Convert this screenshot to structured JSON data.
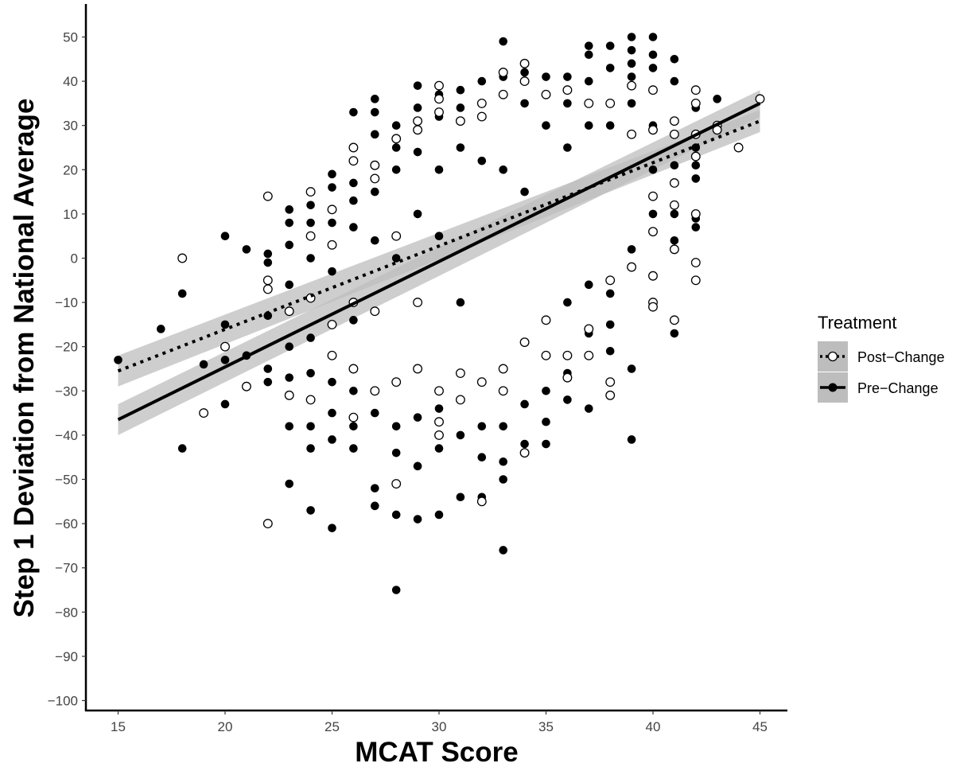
{
  "chart_data": {
    "type": "scatter",
    "title": "",
    "xlabel": "MCAT Score",
    "ylabel": "Step 1 Deviation from National Average",
    "xlim": [
      14,
      46
    ],
    "ylim": [
      -103,
      53
    ],
    "x_ticks": [
      15,
      20,
      25,
      30,
      35,
      40,
      45
    ],
    "y_ticks": [
      -100,
      -90,
      -80,
      -70,
      -60,
      -50,
      -40,
      -30,
      -20,
      -10,
      0,
      10,
      20,
      30,
      40,
      50
    ],
    "x_tick_labels": [
      "15",
      "20",
      "25",
      "30",
      "35",
      "40",
      "45"
    ],
    "y_tick_labels": [
      "−100",
      "−90",
      "−80",
      "−70",
      "−60",
      "−50",
      "−40",
      "−30",
      "−20",
      "−10",
      "0",
      "10",
      "20",
      "30",
      "40",
      "50"
    ],
    "grid": false,
    "legend": {
      "title": "Treatment",
      "position": "right",
      "entries": [
        "Post−Change",
        "Pre−Change"
      ]
    },
    "band_color": "#bdbdbd",
    "series": [
      {
        "name": "Post−Change",
        "marker": "open-circle",
        "line_style": "dotted",
        "color": "#000000",
        "fit": {
          "x": [
            15,
            45
          ],
          "y": [
            -25.5,
            31.0
          ],
          "ci_lower": [
            -29.0,
            28.5
          ],
          "ci_upper": [
            -22.0,
            33.5
          ]
        },
        "points": [
          [
            18,
            0
          ],
          [
            19,
            -35
          ],
          [
            20,
            -20
          ],
          [
            21,
            -29
          ],
          [
            22,
            14
          ],
          [
            22,
            -60
          ],
          [
            22,
            -5
          ],
          [
            22,
            -7
          ],
          [
            23,
            -12
          ],
          [
            23,
            -31
          ],
          [
            24,
            15
          ],
          [
            24,
            -32
          ],
          [
            24,
            -9
          ],
          [
            24,
            5
          ],
          [
            25,
            11
          ],
          [
            25,
            3
          ],
          [
            25,
            -15
          ],
          [
            25,
            -22
          ],
          [
            26,
            25
          ],
          [
            26,
            22
          ],
          [
            26,
            -10
          ],
          [
            26,
            -36
          ],
          [
            26,
            -25
          ],
          [
            27,
            21
          ],
          [
            27,
            18
          ],
          [
            27,
            -30
          ],
          [
            27,
            -12
          ],
          [
            28,
            27
          ],
          [
            28,
            -51
          ],
          [
            28,
            -28
          ],
          [
            28,
            5
          ],
          [
            29,
            31
          ],
          [
            29,
            29
          ],
          [
            29,
            -10
          ],
          [
            29,
            -25
          ],
          [
            30,
            39
          ],
          [
            30,
            36
          ],
          [
            30,
            33
          ],
          [
            30,
            -30
          ],
          [
            30,
            -37
          ],
          [
            30,
            -40
          ],
          [
            31,
            31
          ],
          [
            31,
            -32
          ],
          [
            31,
            -26
          ],
          [
            32,
            35
          ],
          [
            32,
            32
          ],
          [
            32,
            -55
          ],
          [
            32,
            -28
          ],
          [
            33,
            42
          ],
          [
            33,
            37
          ],
          [
            33,
            -25
          ],
          [
            33,
            -30
          ],
          [
            34,
            44
          ],
          [
            34,
            40
          ],
          [
            34,
            -44
          ],
          [
            34,
            -19
          ],
          [
            35,
            37
          ],
          [
            35,
            -14
          ],
          [
            35,
            -22
          ],
          [
            36,
            38
          ],
          [
            36,
            -22
          ],
          [
            36,
            -27
          ],
          [
            37,
            35
          ],
          [
            37,
            -22
          ],
          [
            37,
            -16
          ],
          [
            38,
            35
          ],
          [
            38,
            -28
          ],
          [
            38,
            -31
          ],
          [
            38,
            -5
          ],
          [
            39,
            39
          ],
          [
            39,
            28
          ],
          [
            39,
            -2
          ],
          [
            40,
            38
          ],
          [
            40,
            29
          ],
          [
            40,
            14
          ],
          [
            40,
            6
          ],
          [
            40,
            -4
          ],
          [
            40,
            -10
          ],
          [
            40,
            -11
          ],
          [
            41,
            31
          ],
          [
            41,
            28
          ],
          [
            41,
            17
          ],
          [
            41,
            12
          ],
          [
            41,
            2
          ],
          [
            41,
            -14
          ],
          [
            42,
            38
          ],
          [
            42,
            35
          ],
          [
            42,
            28
          ],
          [
            42,
            23
          ],
          [
            42,
            10
          ],
          [
            42,
            -1
          ],
          [
            42,
            -5
          ],
          [
            43,
            30
          ],
          [
            43,
            29
          ],
          [
            44,
            25
          ],
          [
            45,
            36
          ]
        ]
      },
      {
        "name": "Pre−Change",
        "marker": "filled-circle",
        "line_style": "solid",
        "color": "#000000",
        "fit": {
          "x": [
            15,
            45
          ],
          "y": [
            -36.5,
            35.0
          ],
          "ci_lower": [
            -40.0,
            32.0
          ],
          "ci_upper": [
            -33.0,
            38.0
          ]
        },
        "points": [
          [
            15,
            -23
          ],
          [
            17,
            -16
          ],
          [
            18,
            -8
          ],
          [
            18,
            -43
          ],
          [
            19,
            -24
          ],
          [
            20,
            5
          ],
          [
            20,
            -15
          ],
          [
            20,
            -23
          ],
          [
            20,
            -33
          ],
          [
            21,
            2
          ],
          [
            21,
            -22
          ],
          [
            22,
            1
          ],
          [
            22,
            -1
          ],
          [
            22,
            -13
          ],
          [
            22,
            -25
          ],
          [
            22,
            -28
          ],
          [
            23,
            11
          ],
          [
            23,
            8
          ],
          [
            23,
            3
          ],
          [
            23,
            -6
          ],
          [
            23,
            -20
          ],
          [
            23,
            -27
          ],
          [
            23,
            -38
          ],
          [
            23,
            -51
          ],
          [
            24,
            12
          ],
          [
            24,
            8
          ],
          [
            24,
            0
          ],
          [
            24,
            -18
          ],
          [
            24,
            -26
          ],
          [
            24,
            -38
          ],
          [
            24,
            -43
          ],
          [
            24,
            -57
          ],
          [
            25,
            19
          ],
          [
            25,
            16
          ],
          [
            25,
            8
          ],
          [
            25,
            -3
          ],
          [
            25,
            -28
          ],
          [
            25,
            -35
          ],
          [
            25,
            -41
          ],
          [
            25,
            -61
          ],
          [
            26,
            33
          ],
          [
            26,
            17
          ],
          [
            26,
            13
          ],
          [
            26,
            7
          ],
          [
            26,
            -14
          ],
          [
            26,
            -30
          ],
          [
            26,
            -38
          ],
          [
            26,
            -43
          ],
          [
            27,
            36
          ],
          [
            27,
            33
          ],
          [
            27,
            28
          ],
          [
            27,
            15
          ],
          [
            27,
            4
          ],
          [
            27,
            -35
          ],
          [
            27,
            -52
          ],
          [
            27,
            -56
          ],
          [
            28,
            30
          ],
          [
            28,
            25
          ],
          [
            28,
            20
          ],
          [
            28,
            0
          ],
          [
            28,
            -38
          ],
          [
            28,
            -44
          ],
          [
            28,
            -58
          ],
          [
            28,
            -75
          ],
          [
            29,
            39
          ],
          [
            29,
            34
          ],
          [
            29,
            24
          ],
          [
            29,
            10
          ],
          [
            29,
            -36
          ],
          [
            29,
            -47
          ],
          [
            29,
            -59
          ],
          [
            30,
            37
          ],
          [
            30,
            32
          ],
          [
            30,
            20
          ],
          [
            30,
            5
          ],
          [
            30,
            -34
          ],
          [
            30,
            -43
          ],
          [
            30,
            -58
          ],
          [
            31,
            38
          ],
          [
            31,
            34
          ],
          [
            31,
            25
          ],
          [
            31,
            -10
          ],
          [
            31,
            -40
          ],
          [
            31,
            -54
          ],
          [
            32,
            40
          ],
          [
            32,
            35
          ],
          [
            32,
            22
          ],
          [
            32,
            -38
          ],
          [
            32,
            -45
          ],
          [
            32,
            -54
          ],
          [
            33,
            49
          ],
          [
            33,
            41
          ],
          [
            33,
            20
          ],
          [
            33,
            -38
          ],
          [
            33,
            -46
          ],
          [
            33,
            -50
          ],
          [
            33,
            -66
          ],
          [
            34,
            42
          ],
          [
            34,
            35
          ],
          [
            34,
            15
          ],
          [
            34,
            -33
          ],
          [
            34,
            -42
          ],
          [
            35,
            41
          ],
          [
            35,
            30
          ],
          [
            35,
            -30
          ],
          [
            35,
            -37
          ],
          [
            35,
            -42
          ],
          [
            36,
            41
          ],
          [
            36,
            35
          ],
          [
            36,
            25
          ],
          [
            36,
            -10
          ],
          [
            36,
            -26
          ],
          [
            36,
            -32
          ],
          [
            37,
            48
          ],
          [
            37,
            46
          ],
          [
            37,
            40
          ],
          [
            37,
            30
          ],
          [
            37,
            -6
          ],
          [
            37,
            -17
          ],
          [
            37,
            -34
          ],
          [
            38,
            48
          ],
          [
            38,
            43
          ],
          [
            38,
            30
          ],
          [
            38,
            -8
          ],
          [
            38,
            -15
          ],
          [
            38,
            -21
          ],
          [
            39,
            50
          ],
          [
            39,
            47
          ],
          [
            39,
            44
          ],
          [
            39,
            41
          ],
          [
            39,
            35
          ],
          [
            39,
            2
          ],
          [
            39,
            -25
          ],
          [
            39,
            -41
          ],
          [
            40,
            50
          ],
          [
            40,
            46
          ],
          [
            40,
            43
          ],
          [
            40,
            30
          ],
          [
            40,
            20
          ],
          [
            40,
            10
          ],
          [
            41,
            45
          ],
          [
            41,
            40
          ],
          [
            41,
            21
          ],
          [
            41,
            10
          ],
          [
            41,
            4
          ],
          [
            41,
            -17
          ],
          [
            42,
            34
          ],
          [
            42,
            25
          ],
          [
            42,
            21
          ],
          [
            42,
            18
          ],
          [
            42,
            9
          ],
          [
            42,
            7
          ],
          [
            43,
            36
          ]
        ]
      }
    ]
  }
}
